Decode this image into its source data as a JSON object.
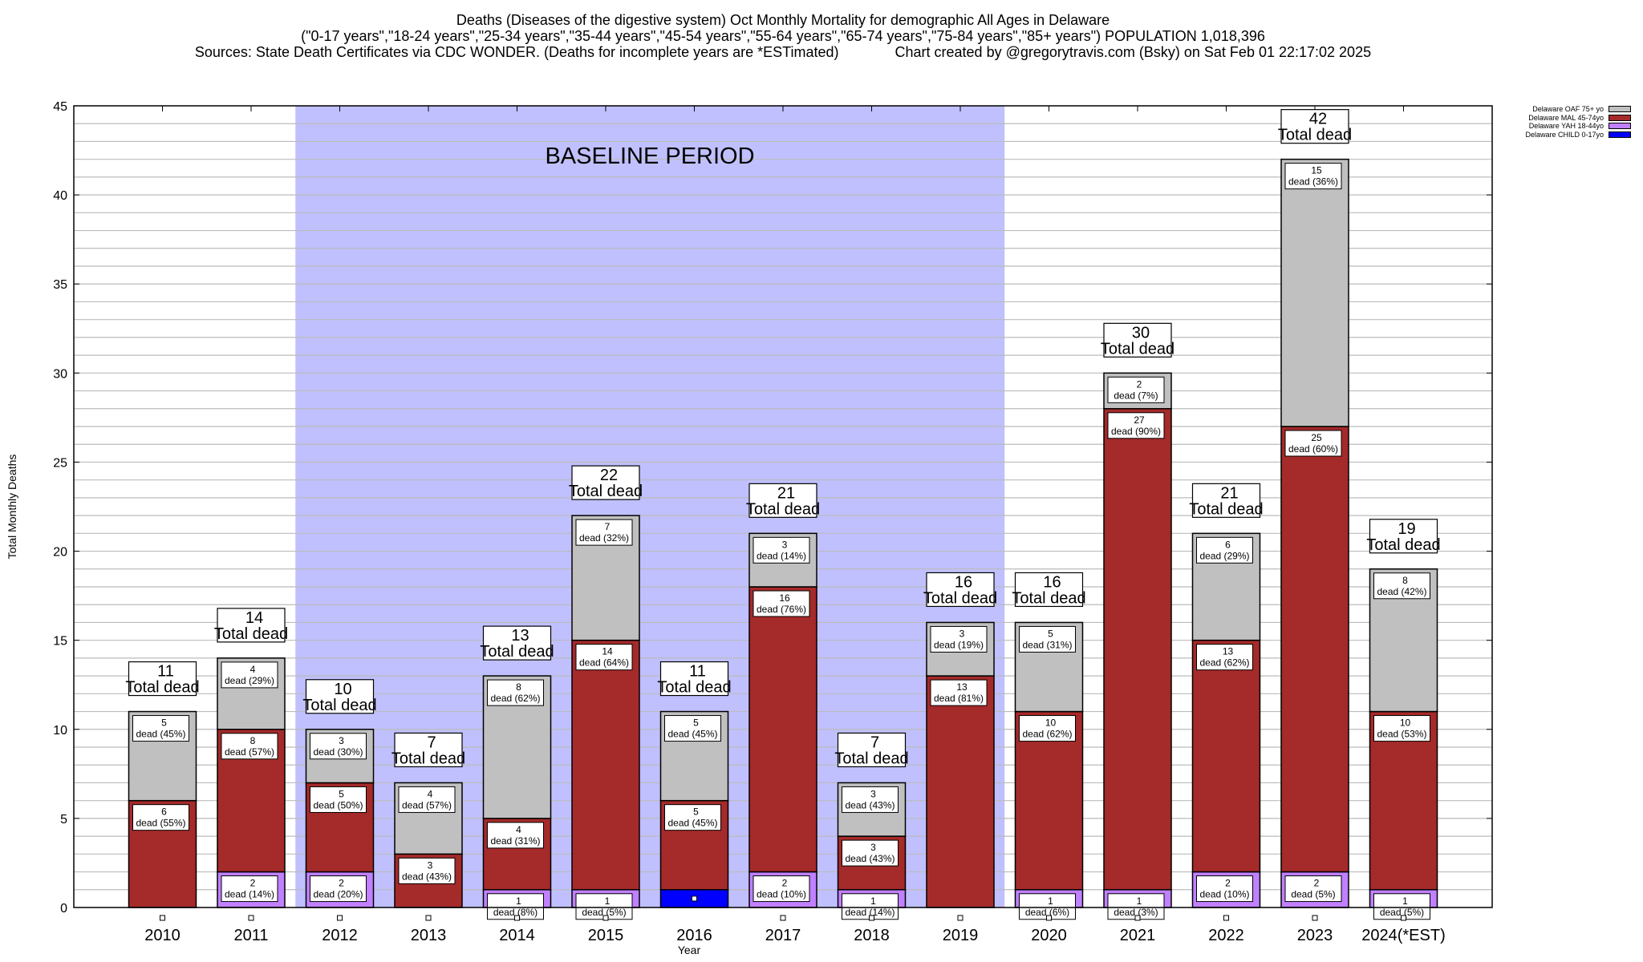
{
  "header": {
    "title_line1": "Deaths (Diseases of the digestive system) Oct Monthly Mortality for demographic All Ages in Delaware",
    "title_line2": "(\"0-17 years\",\"18-24 years\",\"25-34 years\",\"35-44 years\",\"45-54 years\",\"55-64 years\",\"65-74 years\",\"75-84 years\",\"85+ years\") POPULATION 1,018,396",
    "sources": "Sources: State Death Certificates via CDC WONDER. (Deaths for incomplete years are *ESTimated)",
    "credit": "Chart created by @gregorytravis.com (Bsky) on Sat Feb 01 22:17:02 2025"
  },
  "chart_data": {
    "type": "bar",
    "stacked": true,
    "xlabel": "Year",
    "ylabel": "Total Monthly Deaths",
    "ylim": [
      0,
      45
    ],
    "yticks": [
      0,
      5,
      10,
      15,
      20,
      25,
      30,
      35,
      40,
      45
    ],
    "grid": "horizontal every 1",
    "legend_placement": "top-right",
    "annotation": {
      "text": "BASELINE PERIOD",
      "shaded_from": "2012",
      "shaded_to": "2019",
      "color": "#c0c0ff"
    },
    "total_label_suffix": "Total dead",
    "segment_label_word": "dead",
    "categories": [
      "2010",
      "2011",
      "2012",
      "2013",
      "2014",
      "2015",
      "2016",
      "2017",
      "2018",
      "2019",
      "2020",
      "2021",
      "2022",
      "2023",
      "2024(*EST)"
    ],
    "series": [
      {
        "name": "Delaware CHILD 0-17yo",
        "color": "#0000ff",
        "values": [
          0,
          0,
          0,
          0,
          0,
          0,
          1,
          0,
          0,
          0,
          0,
          0,
          0,
          0,
          0
        ],
        "pct": [
          null,
          null,
          null,
          null,
          null,
          null,
          null,
          null,
          null,
          null,
          null,
          null,
          null,
          null,
          null
        ]
      },
      {
        "name": "Delaware YAH 18-44yo",
        "color": "#c080ff",
        "values": [
          0,
          2,
          2,
          0,
          1,
          1,
          0,
          2,
          1,
          0,
          1,
          1,
          2,
          2,
          1
        ],
        "pct": [
          null,
          14,
          20,
          null,
          8,
          5,
          null,
          10,
          14,
          null,
          6,
          3,
          10,
          5,
          5
        ]
      },
      {
        "name": "Delaware MAL 45-74yo",
        "color": "#a52a2a",
        "values": [
          6,
          8,
          5,
          3,
          4,
          14,
          5,
          16,
          3,
          13,
          10,
          27,
          13,
          25,
          10
        ],
        "pct": [
          55,
          57,
          50,
          43,
          31,
          64,
          45,
          76,
          43,
          81,
          62,
          90,
          62,
          60,
          53
        ]
      },
      {
        "name": "Delaware OAF 75+ yo",
        "color": "#c0c0c0",
        "values": [
          5,
          4,
          3,
          4,
          8,
          7,
          5,
          3,
          3,
          3,
          5,
          2,
          6,
          15,
          8
        ],
        "pct": [
          45,
          29,
          30,
          57,
          62,
          32,
          45,
          14,
          43,
          19,
          31,
          7,
          29,
          36,
          42
        ]
      }
    ],
    "totals": [
      11,
      14,
      10,
      7,
      13,
      22,
      11,
      21,
      7,
      16,
      16,
      30,
      21,
      42,
      19
    ]
  }
}
